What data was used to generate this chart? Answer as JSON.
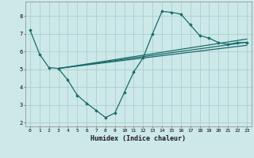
{
  "xlabel": "Humidex (Indice chaleur)",
  "bg_color": "#cde8e8",
  "grid_color": "#aacfcf",
  "line_color": "#1a6b6b",
  "marker_color": "#1a6b6b",
  "xlim": [
    -0.5,
    23.5
  ],
  "ylim": [
    1.8,
    8.8
  ],
  "yticks": [
    2,
    3,
    4,
    5,
    6,
    7,
    8
  ],
  "xticks": [
    0,
    1,
    2,
    3,
    4,
    5,
    6,
    7,
    8,
    9,
    10,
    11,
    12,
    13,
    14,
    15,
    16,
    17,
    18,
    19,
    20,
    21,
    22,
    23
  ],
  "line1_x": [
    0,
    1,
    2,
    3,
    4,
    5,
    6,
    7,
    8,
    9,
    10,
    11,
    12,
    13,
    14,
    15,
    16,
    17,
    18,
    19,
    20,
    21,
    22,
    23
  ],
  "line1_y": [
    7.2,
    5.85,
    5.1,
    5.05,
    4.4,
    3.55,
    3.1,
    2.7,
    2.3,
    2.55,
    3.7,
    4.85,
    5.65,
    7.0,
    8.25,
    8.2,
    8.1,
    7.5,
    6.9,
    6.75,
    6.5,
    6.4,
    6.5,
    6.5
  ],
  "line2_x": [
    3,
    23
  ],
  "line2_y": [
    5.05,
    6.35
  ],
  "line3_x": [
    3,
    23
  ],
  "line3_y": [
    5.05,
    6.52
  ],
  "line4_x": [
    3,
    23
  ],
  "line4_y": [
    5.05,
    6.7
  ]
}
